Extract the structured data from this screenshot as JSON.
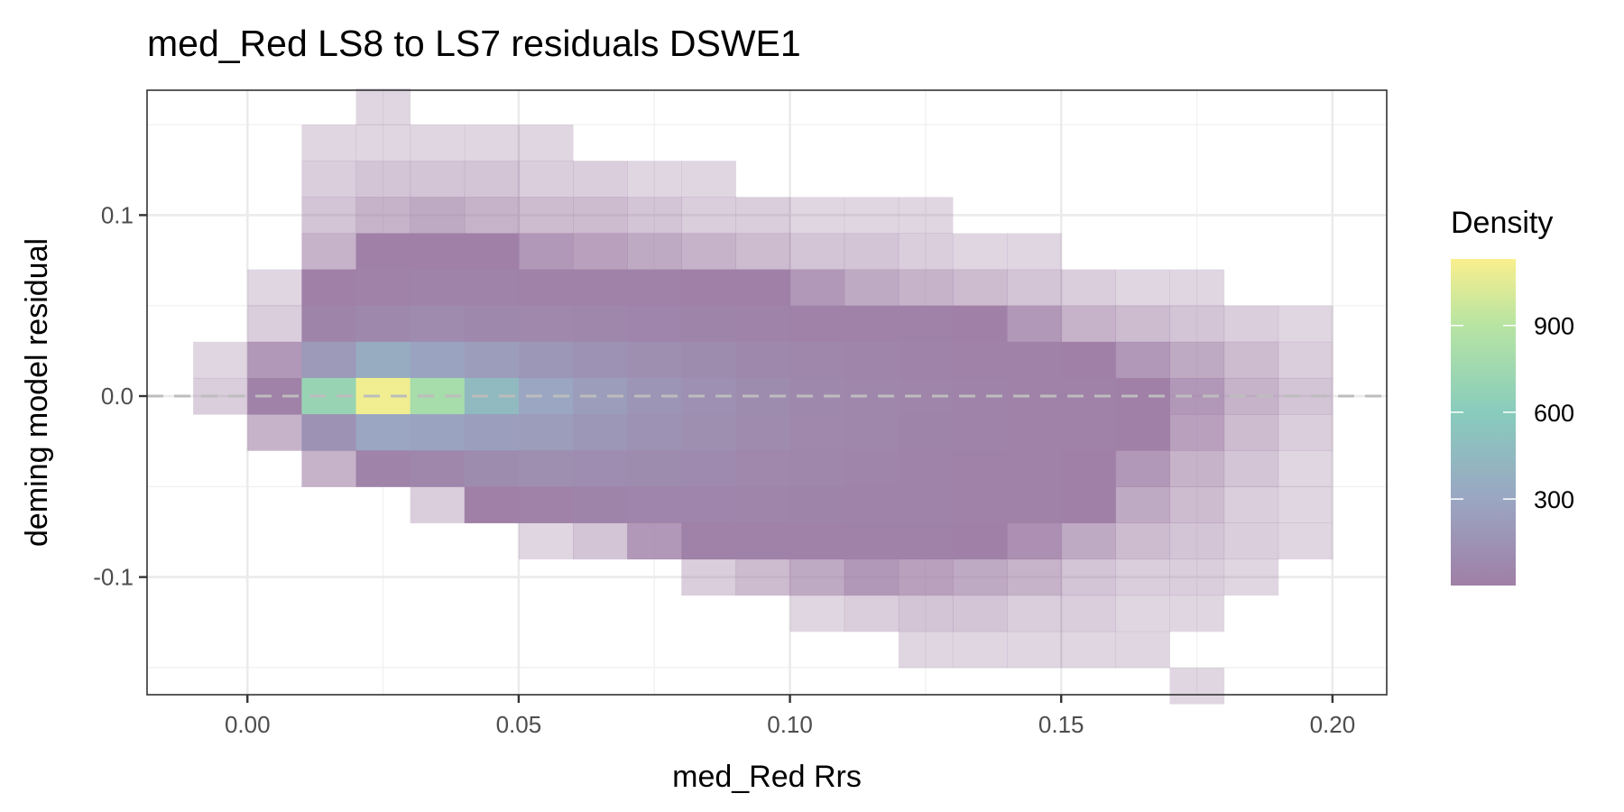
{
  "chart_data": {
    "type": "heatmap",
    "title": "med_Red LS8 to LS7 residuals DSWE1",
    "xlabel": "med_Red Rrs",
    "ylabel": "deming model residual",
    "xlim": [
      -0.0185,
      0.21
    ],
    "ylim": [
      -0.165,
      0.169
    ],
    "x_ticks": [
      0.0,
      0.05,
      0.1,
      0.15,
      0.2
    ],
    "x_tick_labels": [
      "0.00",
      "0.05",
      "0.10",
      "0.15",
      "0.20"
    ],
    "x_minor": [
      0.025,
      0.075,
      0.125,
      0.175
    ],
    "y_ticks": [
      -0.1,
      0.0,
      0.1
    ],
    "y_tick_labels": [
      "-0.1",
      "0.0",
      "0.1"
    ],
    "y_minor": [
      -0.15,
      -0.05,
      0.05,
      0.15
    ],
    "grid": true,
    "reference_line": {
      "y": 0.0,
      "style": "dashed",
      "color": "#bdbdbd"
    },
    "x_bin_centers": [
      -0.005,
      0.005,
      0.015,
      0.025,
      0.035,
      0.045,
      0.055,
      0.065,
      0.075,
      0.085,
      0.095,
      0.105,
      0.115,
      0.125,
      0.135,
      0.145,
      0.155,
      0.165,
      0.175,
      0.185,
      0.195
    ],
    "y_bin_centers": [
      0.16,
      0.14,
      0.12,
      0.1,
      0.08,
      0.06,
      0.04,
      0.02,
      0.0,
      -0.02,
      -0.04,
      -0.06,
      -0.08,
      -0.1,
      -0.12,
      -0.14,
      -0.16
    ],
    "density": [
      [
        0,
        0,
        0,
        1,
        0,
        0,
        0,
        0,
        0,
        0,
        0,
        0,
        0,
        0,
        0,
        0,
        0,
        0,
        0,
        0,
        0
      ],
      [
        0,
        0,
        1,
        1,
        1,
        1,
        1,
        0,
        0,
        0,
        0,
        0,
        0,
        0,
        0,
        0,
        0,
        0,
        0,
        0,
        0
      ],
      [
        0,
        0,
        2,
        3,
        3,
        3,
        2,
        2,
        1,
        1,
        0,
        0,
        0,
        0,
        0,
        0,
        0,
        0,
        0,
        0,
        0
      ],
      [
        0,
        0,
        3,
        5,
        6,
        5,
        4,
        4,
        3,
        2,
        2,
        1,
        1,
        1,
        0,
        0,
        0,
        0,
        0,
        0,
        0
      ],
      [
        0,
        0,
        5,
        10,
        12,
        10,
        8,
        7,
        6,
        5,
        4,
        3,
        3,
        2,
        1,
        1,
        0,
        0,
        0,
        0,
        0
      ],
      [
        0,
        1,
        10,
        25,
        30,
        28,
        25,
        20,
        15,
        12,
        10,
        8,
        6,
        5,
        4,
        3,
        2,
        1,
        1,
        0,
        0
      ],
      [
        0,
        2,
        40,
        80,
        90,
        80,
        70,
        60,
        50,
        40,
        30,
        25,
        20,
        15,
        10,
        8,
        5,
        4,
        3,
        2,
        1
      ],
      [
        1,
        8,
        200,
        350,
        280,
        220,
        180,
        150,
        120,
        100,
        80,
        60,
        45,
        35,
        25,
        18,
        12,
        8,
        6,
        4,
        2
      ],
      [
        2,
        20,
        700,
        1100,
        800,
        450,
        300,
        220,
        170,
        130,
        100,
        80,
        60,
        45,
        30,
        22,
        15,
        10,
        8,
        5,
        3
      ],
      [
        0,
        5,
        150,
        300,
        280,
        250,
        220,
        180,
        150,
        120,
        90,
        70,
        55,
        40,
        30,
        22,
        15,
        10,
        7,
        4,
        2
      ],
      [
        0,
        0,
        5,
        30,
        60,
        100,
        120,
        110,
        100,
        85,
        70,
        55,
        45,
        35,
        25,
        18,
        12,
        8,
        5,
        3,
        1
      ],
      [
        0,
        0,
        0,
        0,
        2,
        10,
        25,
        40,
        50,
        50,
        45,
        40,
        35,
        28,
        20,
        15,
        10,
        6,
        4,
        2,
        1
      ],
      [
        0,
        0,
        0,
        0,
        0,
        0,
        1,
        3,
        8,
        15,
        20,
        20,
        18,
        15,
        12,
        9,
        6,
        4,
        3,
        2,
        1
      ],
      [
        0,
        0,
        0,
        0,
        0,
        0,
        0,
        0,
        0,
        2,
        4,
        6,
        8,
        7,
        6,
        5,
        3,
        2,
        2,
        1,
        0
      ],
      [
        0,
        0,
        0,
        0,
        0,
        0,
        0,
        0,
        0,
        0,
        0,
        1,
        2,
        3,
        3,
        2,
        2,
        1,
        1,
        0,
        0
      ],
      [
        0,
        0,
        0,
        0,
        0,
        0,
        0,
        0,
        0,
        0,
        0,
        0,
        0,
        1,
        1,
        1,
        1,
        1,
        0,
        0,
        0
      ],
      [
        0,
        0,
        0,
        0,
        0,
        0,
        0,
        0,
        0,
        0,
        0,
        0,
        0,
        0,
        0,
        0,
        0,
        0,
        1,
        0,
        0
      ]
    ],
    "legend": {
      "title": "Density",
      "placement": "right",
      "range": [
        1,
        1130
      ],
      "ticks": [
        300,
        600,
        900
      ],
      "tick_labels": [
        "300",
        "600",
        "900"
      ],
      "colors": [
        {
          "value": 1,
          "color": "#a07fa6"
        },
        {
          "value": 300,
          "color": "#9aa6c2"
        },
        {
          "value": 600,
          "color": "#88ccbd"
        },
        {
          "value": 900,
          "color": "#b7e4a2"
        },
        {
          "value": 1130,
          "color": "#f9ef8d"
        }
      ]
    }
  }
}
